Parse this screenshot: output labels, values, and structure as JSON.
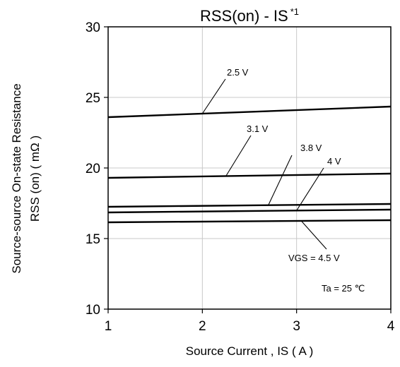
{
  "chart_data": {
    "type": "line",
    "title": "RSS(on) - IS",
    "title_superscript": "*1",
    "xlabel": "Source Current , IS ( A )",
    "ylabel_lines": [
      "Source-source On-state Resistance",
      "RSS (on) ( mΩ )"
    ],
    "xlim": [
      1,
      4
    ],
    "ylim": [
      10,
      30
    ],
    "xticks": [
      1,
      2,
      3,
      4
    ],
    "yticks": [
      10,
      15,
      20,
      25,
      30
    ],
    "grid": true,
    "series": [
      {
        "name": "2.5 V",
        "x": [
          1,
          4
        ],
        "y": [
          23.6,
          24.35
        ]
      },
      {
        "name": "3.1 V",
        "x": [
          1,
          4
        ],
        "y": [
          19.3,
          19.6
        ]
      },
      {
        "name": "3.8 V",
        "x": [
          1,
          4
        ],
        "y": [
          17.25,
          17.45
        ]
      },
      {
        "name": "4 V",
        "x": [
          1,
          4
        ],
        "y": [
          16.85,
          17.05
        ]
      },
      {
        "name": "VGS = 4.5 V",
        "x": [
          1,
          4
        ],
        "y": [
          16.15,
          16.3
        ]
      }
    ],
    "annotations": [
      {
        "text": "2.5 V",
        "series": 0
      },
      {
        "text": "3.1 V",
        "series": 1
      },
      {
        "text": "3.8 V",
        "series": 2
      },
      {
        "text": "4 V",
        "series": 3
      },
      {
        "text": "VGS = 4.5 V",
        "series": 4
      }
    ],
    "note": "Ta = 25 ℃"
  }
}
